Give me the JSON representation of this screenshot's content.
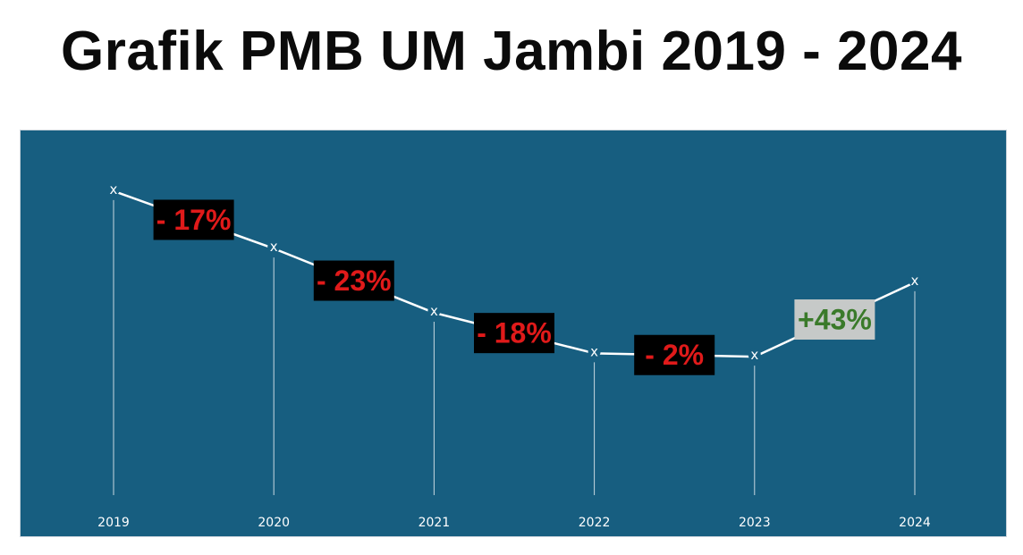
{
  "title": "Grafik PMB UM Jambi 2019 - 2024",
  "colors": {
    "background": "#175e80",
    "line": "#ffffff",
    "negative_text": "#e01a1a",
    "negative_bg": "#000000",
    "positive_text": "#3a7a2a",
    "positive_bg": "#c6c9c8"
  },
  "chart_data": {
    "type": "line",
    "title": "Grafik PMB UM Jambi 2019 - 2024",
    "xlabel": "",
    "ylabel": "",
    "grid": false,
    "marker": "x",
    "categories": [
      "2019",
      "2020",
      "2021",
      "2022",
      "2023",
      "2024"
    ],
    "values": [
      100,
      83,
      64,
      52,
      51,
      73
    ],
    "ylim": [
      0,
      110
    ],
    "annotations": [
      {
        "between": [
          "2019",
          "2020"
        ],
        "text": "- 17%",
        "sign": "negative"
      },
      {
        "between": [
          "2020",
          "2021"
        ],
        "text": "- 23%",
        "sign": "negative"
      },
      {
        "between": [
          "2021",
          "2022"
        ],
        "text": "- 18%",
        "sign": "negative"
      },
      {
        "between": [
          "2022",
          "2023"
        ],
        "text": "- 2%",
        "sign": "negative"
      },
      {
        "between": [
          "2023",
          "2024"
        ],
        "text": "+43%",
        "sign": "positive"
      }
    ]
  }
}
